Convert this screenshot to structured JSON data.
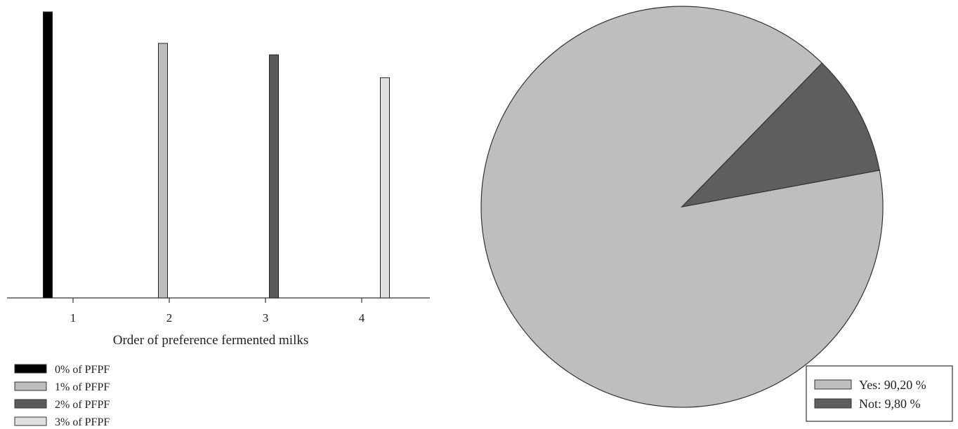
{
  "chart_data": [
    {
      "type": "bar",
      "xlabel": "Order of preference fermented milks",
      "ylabel": "",
      "categories": [
        "1",
        "2",
        "3",
        "4"
      ],
      "ylim": [
        0,
        100
      ],
      "series": [
        {
          "name": "0% of PFPF",
          "color": "#000000",
          "values": [
            100,
            null,
            null,
            null
          ]
        },
        {
          "name": "1% of PFPF",
          "color": "#bdbdbd",
          "values": [
            null,
            89,
            null,
            null
          ]
        },
        {
          "name": "2% of PFPF",
          "color": "#5a5a5a",
          "values": [
            null,
            null,
            85,
            null
          ]
        },
        {
          "name": "3% of PFPF",
          "color": "#e0e0e0",
          "values": [
            null,
            null,
            null,
            77
          ]
        }
      ],
      "legend_position": "bottom-left"
    },
    {
      "type": "pie",
      "slices": [
        {
          "label": "Yes: 90,20 %",
          "value": 90.2,
          "color": "#bebebe"
        },
        {
          "label": "Not: 9,80 %",
          "value": 9.8,
          "color": "#5e5e5e"
        }
      ],
      "legend_position": "bottom-right"
    }
  ]
}
